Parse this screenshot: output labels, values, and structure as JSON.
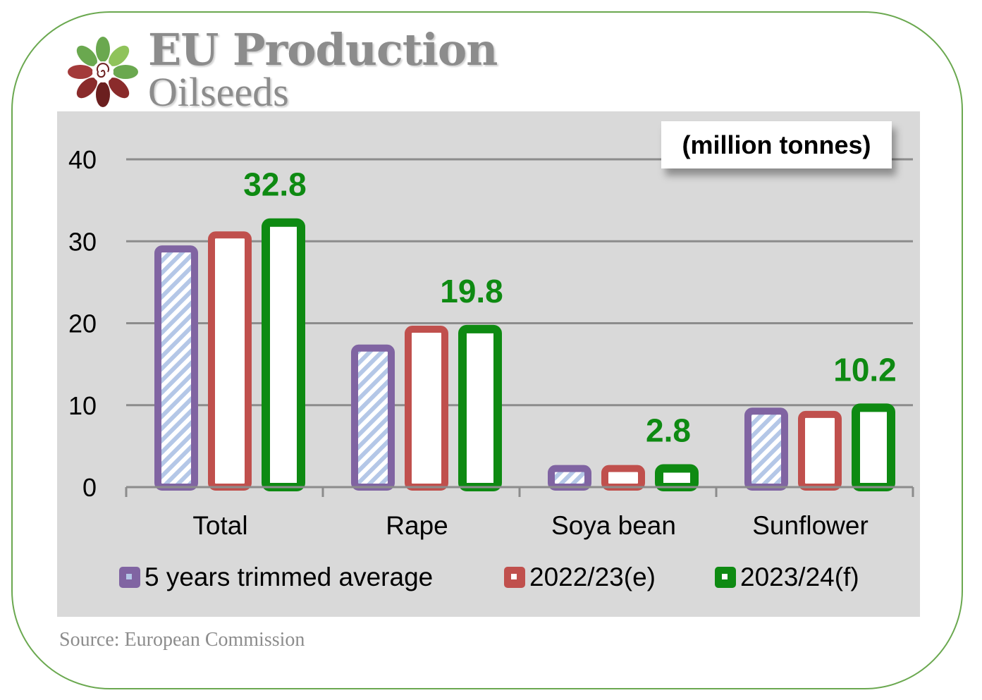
{
  "header": {
    "title": "EU Production",
    "subtitle": "Oilseeds"
  },
  "unit_label": "(million tonnes)",
  "source": "Source: European Commission",
  "colors": {
    "frame": "#6aa84f",
    "title": "#8c8c8c",
    "panel": "#d9d9d9",
    "series_avg": "#8064a2",
    "series_avg_fill": "#b4c7e7",
    "series_2022": "#c0504d",
    "series_2023": "#0e8a12",
    "data_label": "#0e8a12"
  },
  "logo": {
    "icon": "sunflower-seed-logo-icon"
  },
  "chart_data": {
    "type": "bar",
    "categories": [
      "Total",
      "Rape",
      "Soya bean",
      "Sunflower"
    ],
    "series": [
      {
        "name": "5 years trimmed average",
        "values": [
          29.5,
          17.4,
          2.7,
          9.7
        ]
      },
      {
        "name": "2022/23(e)",
        "values": [
          31.2,
          19.7,
          2.7,
          9.3
        ]
      },
      {
        "name": "2023/24(f)",
        "values": [
          32.8,
          19.8,
          2.8,
          10.2
        ]
      }
    ],
    "data_labels": [
      "32.8",
      "19.8",
      "2.8",
      "10.2"
    ],
    "y_ticks": [
      "0",
      "10",
      "20",
      "30",
      "40"
    ],
    "ylim": [
      0,
      40
    ],
    "grid": true,
    "legend_position": "bottom"
  }
}
